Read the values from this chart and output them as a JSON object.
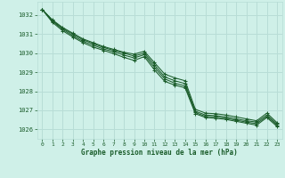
{
  "xlabel": "Graphe pression niveau de la mer (hPa)",
  "bg_color": "#cff0e8",
  "grid_color": "#b8ddd6",
  "line_color": "#1a5c2a",
  "xlim": [
    -0.5,
    23.5
  ],
  "ylim": [
    1025.5,
    1032.7
  ],
  "yticks": [
    1026,
    1027,
    1028,
    1029,
    1030,
    1031,
    1032
  ],
  "xticks": [
    0,
    1,
    2,
    3,
    4,
    5,
    6,
    7,
    8,
    9,
    10,
    11,
    12,
    13,
    14,
    15,
    16,
    17,
    18,
    19,
    20,
    21,
    22,
    23
  ],
  "series": [
    [
      1032.3,
      1031.75,
      1031.35,
      1031.05,
      1030.75,
      1030.55,
      1030.35,
      1030.2,
      1030.05,
      1029.95,
      1030.1,
      1029.5,
      1028.9,
      1028.7,
      1028.55,
      1027.05,
      1026.85,
      1026.82,
      1026.75,
      1026.65,
      1026.55,
      1026.45,
      1026.85,
      1026.35
    ],
    [
      1032.3,
      1031.72,
      1031.3,
      1031.0,
      1030.7,
      1030.5,
      1030.3,
      1030.15,
      1030.0,
      1029.85,
      1030.0,
      1029.38,
      1028.75,
      1028.55,
      1028.4,
      1026.95,
      1026.75,
      1026.72,
      1026.65,
      1026.55,
      1026.45,
      1026.38,
      1026.75,
      1026.28
    ],
    [
      1032.3,
      1031.68,
      1031.25,
      1030.92,
      1030.62,
      1030.42,
      1030.22,
      1030.08,
      1029.9,
      1029.75,
      1029.92,
      1029.25,
      1028.65,
      1028.42,
      1028.28,
      1026.88,
      1026.68,
      1026.65,
      1026.58,
      1026.48,
      1026.38,
      1026.3,
      1026.68,
      1026.22
    ],
    [
      1032.3,
      1031.62,
      1031.18,
      1030.85,
      1030.55,
      1030.32,
      1030.15,
      1029.98,
      1029.78,
      1029.62,
      1029.82,
      1029.12,
      1028.52,
      1028.32,
      1028.18,
      1026.82,
      1026.62,
      1026.58,
      1026.52,
      1026.42,
      1026.32,
      1026.22,
      1026.62,
      1026.15
    ]
  ]
}
